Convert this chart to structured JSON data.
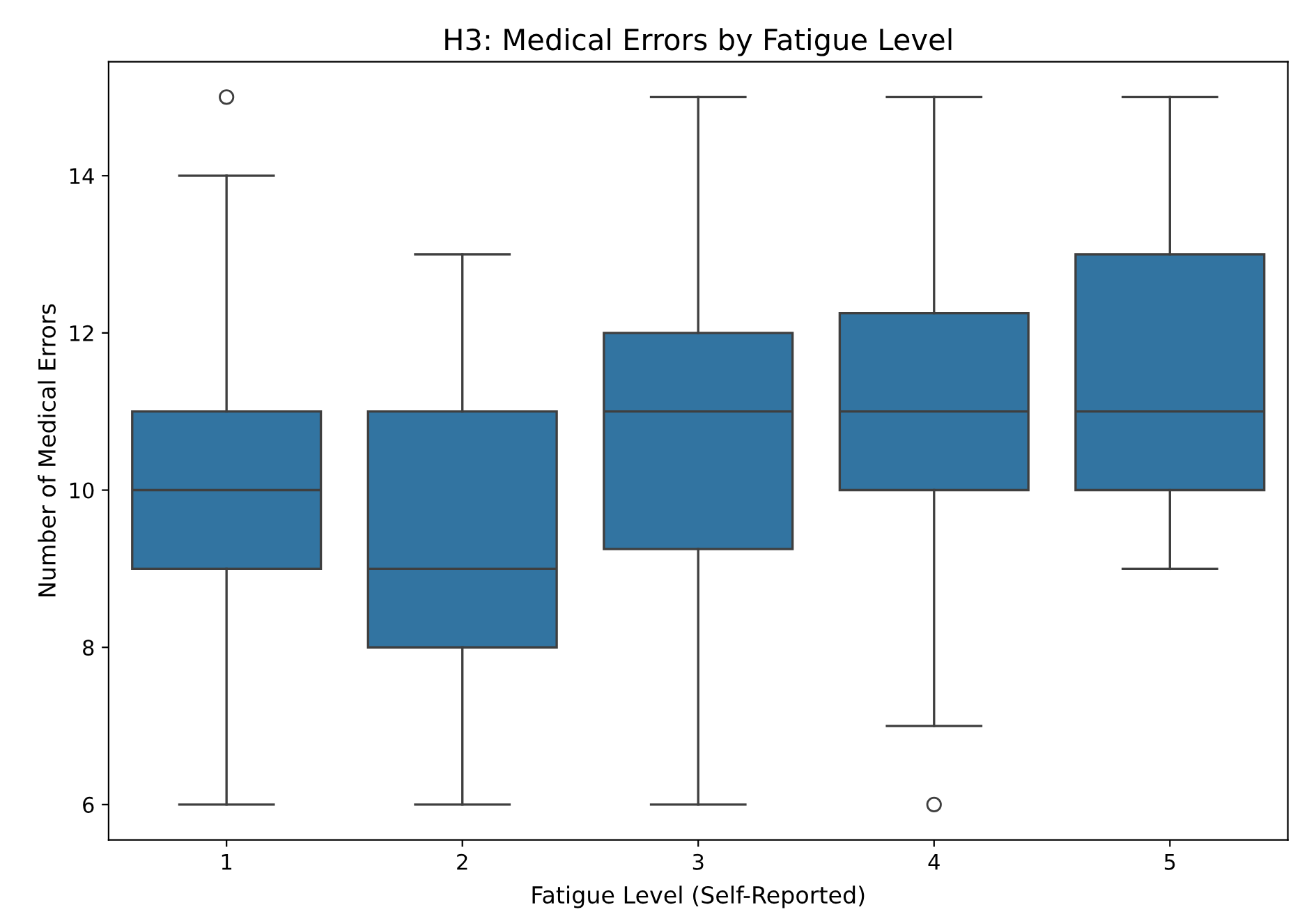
{
  "chart_data": {
    "type": "box",
    "title": "H3: Medical Errors by Fatigue Level",
    "xlabel": "Fatigue Level (Self-Reported)",
    "ylabel": "Number of Medical Errors",
    "categories": [
      "1",
      "2",
      "3",
      "4",
      "5"
    ],
    "color": "#3274a1",
    "boxes": [
      {
        "low": 6,
        "q1": 9,
        "median": 10,
        "q3": 11,
        "high": 14,
        "outliers": [
          15
        ]
      },
      {
        "low": 6,
        "q1": 8,
        "median": 9,
        "q3": 11,
        "high": 13
      },
      {
        "low": 6,
        "q1": 9.25,
        "median": 11,
        "q3": 12,
        "high": 15
      },
      {
        "low": 7,
        "q1": 10,
        "median": 11,
        "q3": 12.25,
        "high": 15,
        "outliers": [
          6
        ]
      },
      {
        "low": 9,
        "q1": 10,
        "median": 11,
        "q3": 13,
        "high": 15
      }
    ],
    "ylim": [
      5.55,
      15.45
    ],
    "yticks": [
      6,
      8,
      10,
      12,
      14
    ],
    "grid": false
  }
}
